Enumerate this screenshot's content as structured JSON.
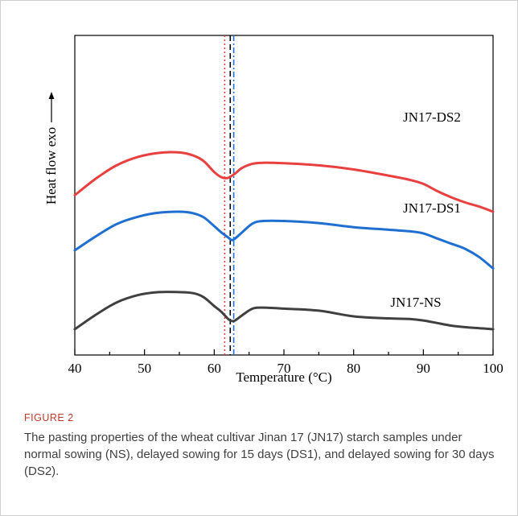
{
  "figure": {
    "label": "FIGURE 2",
    "caption": "The pasting properties of the wheat cultivar Jinan 17 (JN17) starch samples under normal sowing (NS), delayed sowing for 15 days (DS1), and delayed sowing for 30 days (DS2)."
  },
  "chart_data": {
    "type": "line",
    "title": "",
    "xlabel": "Temperature (°C)",
    "ylabel": "Heat flow exo",
    "xlim": [
      40,
      100
    ],
    "x_ticks": [
      40,
      50,
      60,
      70,
      80,
      90,
      100
    ],
    "grid": false,
    "legend": "inline labels on the right",
    "series": [
      {
        "name": "JN17-DS2",
        "color": "#e8403e",
        "x": [
          40,
          43,
          46,
          49,
          52,
          55,
          57,
          58.5,
          60,
          61,
          61.7,
          62.2,
          63,
          64,
          65.5,
          67,
          70,
          75,
          80,
          85,
          88,
          90,
          92,
          94,
          96,
          98,
          100
        ],
        "y": [
          2.6,
          2.92,
          3.18,
          3.34,
          3.42,
          3.43,
          3.37,
          3.26,
          3.05,
          2.95,
          2.93,
          2.95,
          3.02,
          3.13,
          3.21,
          3.23,
          3.22,
          3.18,
          3.1,
          2.98,
          2.9,
          2.82,
          2.68,
          2.56,
          2.46,
          2.38,
          2.28
        ]
      },
      {
        "name": "JN17-DS1",
        "color": "#1f6fd1",
        "x": [
          40,
          43,
          46,
          49,
          52,
          55,
          57,
          58.5,
          60,
          61,
          62,
          62.5,
          63,
          64,
          65.5,
          67,
          70,
          75,
          80,
          85,
          88,
          90,
          92,
          94,
          96,
          98,
          100
        ],
        "y": [
          1.53,
          1.8,
          2.04,
          2.18,
          2.26,
          2.28,
          2.25,
          2.17,
          2.0,
          1.88,
          1.78,
          1.73,
          1.76,
          1.88,
          2.05,
          2.1,
          2.1,
          2.06,
          1.98,
          1.93,
          1.9,
          1.86,
          1.76,
          1.66,
          1.56,
          1.4,
          1.18
        ]
      },
      {
        "name": "JN17-NS",
        "color": "#404040",
        "x": [
          40,
          43,
          46,
          49,
          52,
          55,
          57,
          58.5,
          60,
          61,
          62,
          62.5,
          63,
          64,
          65.5,
          67,
          70,
          75,
          80,
          85,
          88,
          90,
          92,
          94,
          96,
          98,
          100
        ],
        "y": [
          0.0,
          0.28,
          0.52,
          0.66,
          0.72,
          0.72,
          0.7,
          0.62,
          0.45,
          0.34,
          0.2,
          0.16,
          0.17,
          0.27,
          0.4,
          0.42,
          0.4,
          0.36,
          0.25,
          0.21,
          0.2,
          0.17,
          0.12,
          0.07,
          0.04,
          0.02,
          0.0
        ]
      }
    ],
    "reference_lines": [
      {
        "x": 61.5,
        "color": "#e8403e",
        "style": "dotted"
      },
      {
        "x": 62.3,
        "color": "#000000",
        "style": "dashed"
      },
      {
        "x": 62.8,
        "color": "#1f6fd1",
        "style": "dash-dot"
      }
    ],
    "ylim": [
      -0.5,
      5.7
    ]
  }
}
